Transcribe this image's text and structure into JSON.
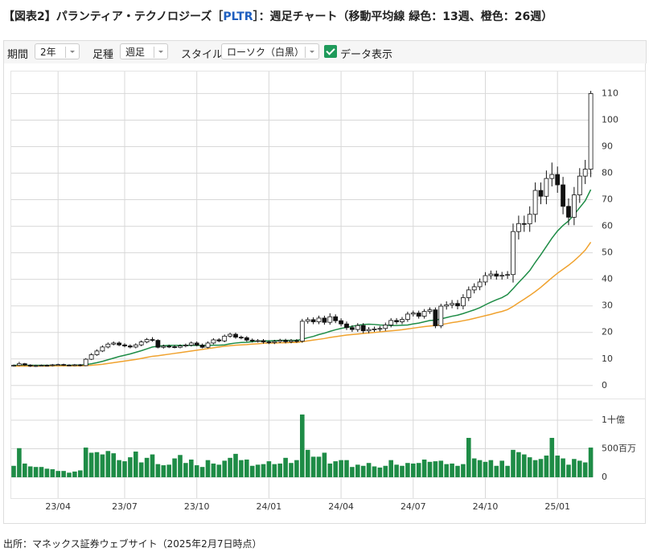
{
  "header": {
    "title_prefix": "【図表2】パランティア・テクノロジーズ［",
    "ticker": "PLTR",
    "title_suffix": "］：週足チャート（移動平均線 緑色：13週、橙色：26週）"
  },
  "controls": {
    "period_label": "期間",
    "period_value": "2年",
    "bar_label": "足種",
    "bar_value": "週足",
    "style_label": "スタイル",
    "style_value": "ローソク（白黒）",
    "data_label": "データ表示"
  },
  "chart_data": {
    "type": "candlestick",
    "categories": [
      null,
      null,
      null,
      null,
      null,
      null,
      null,
      null,
      "23/04",
      null,
      null,
      null,
      null,
      null,
      null,
      null,
      null,
      null,
      null,
      null,
      "23/07",
      null,
      null,
      null,
      null,
      null,
      null,
      null,
      null,
      null,
      null,
      null,
      null,
      "23/10",
      null,
      null,
      null,
      null,
      null,
      null,
      null,
      null,
      null,
      null,
      null,
      null,
      "24/01",
      null,
      null,
      null,
      null,
      null,
      null,
      null,
      null,
      null,
      null,
      null,
      null,
      "24/04",
      null,
      null,
      null,
      null,
      null,
      null,
      null,
      null,
      null,
      null,
      null,
      null,
      "24/07",
      null,
      null,
      null,
      null,
      null,
      null,
      null,
      null,
      null,
      null,
      null,
      null,
      "24/10",
      null,
      null,
      null,
      null,
      null,
      null,
      null,
      null,
      null,
      null,
      null,
      null,
      "25/01",
      null,
      null,
      null,
      null,
      null,
      null
    ],
    "open": [
      7.4,
      7.6,
      8.2,
      7.7,
      7.3,
      7.5,
      7.6,
      7.5,
      7.8,
      7.9,
      7.7,
      7.6,
      7.8,
      7.5,
      9.9,
      11.6,
      13.0,
      14.5,
      15.6,
      16.0,
      15.3,
      14.9,
      14.5,
      15.3,
      16.4,
      17.3,
      17.0,
      14.4,
      14.8,
      14.6,
      14.4,
      14.9,
      15.2,
      16.0,
      15.2,
      14.4,
      16.0,
      17.2,
      16.8,
      18.6,
      19.3,
      18.2,
      18.0,
      17.1,
      16.8,
      16.9,
      16.4,
      16.2,
      16.6,
      17.0,
      16.5,
      16.9,
      16.7,
      24.2,
      24.8,
      24.0,
      25.4,
      23.8,
      25.9,
      24.4,
      23.2,
      21.8,
      21.1,
      22.6,
      20.6,
      21.1,
      21.3,
      21.5,
      22.8,
      24.5,
      24.0,
      24.9,
      26.9,
      27.3,
      26.1,
      27.9,
      28.5,
      22.5,
      29.9,
      30.4,
      30.9,
      30.0,
      33.1,
      36.0,
      37.2,
      39.0,
      41.4,
      42.0,
      41.2,
      41.5,
      41.8,
      58.0,
      61.0,
      60.9,
      64.5,
      73.5,
      71.3,
      78.0,
      79.5,
      75.6,
      67.5,
      63.4,
      71.8,
      78.9,
      81.5
    ],
    "high": [
      7.9,
      8.9,
      8.5,
      8.0,
      7.8,
      7.9,
      7.9,
      8.1,
      8.2,
      8.2,
      8.0,
      8.1,
      8.1,
      10.3,
      12.2,
      13.6,
      15.1,
      16.2,
      16.6,
      16.6,
      15.9,
      15.5,
      15.9,
      17.0,
      17.9,
      18.2,
      17.4,
      15.4,
      15.4,
      15.2,
      15.5,
      15.8,
      16.6,
      16.6,
      15.8,
      16.6,
      17.8,
      17.8,
      19.2,
      19.9,
      19.9,
      18.8,
      18.6,
      17.7,
      17.5,
      17.5,
      17.0,
      17.2,
      17.6,
      17.6,
      17.5,
      17.5,
      25.1,
      25.7,
      25.7,
      26.3,
      26.3,
      27.2,
      26.8,
      25.3,
      24.1,
      22.7,
      23.5,
      23.5,
      22.0,
      22.2,
      22.4,
      23.7,
      25.4,
      25.4,
      25.8,
      27.8,
      28.2,
      28.2,
      28.8,
      29.4,
      29.4,
      30.8,
      31.7,
      32.2,
      32.2,
      34.4,
      37.3,
      38.5,
      40.3,
      42.7,
      43.3,
      43.3,
      42.8,
      43.1,
      61.0,
      64.0,
      64.0,
      67.5,
      76.5,
      76.5,
      81.0,
      84.0,
      82.5,
      78.6,
      70.5,
      74.8,
      81.9,
      85.0,
      111.0
    ],
    "low": [
      7.1,
      7.3,
      7.4,
      7.0,
      7.0,
      7.2,
      7.2,
      7.2,
      7.5,
      7.4,
      7.3,
      7.3,
      7.2,
      7.3,
      9.6,
      11.2,
      12.6,
      14.0,
      15.1,
      14.8,
      14.4,
      14.0,
      14.0,
      14.8,
      15.9,
      16.5,
      14.0,
      13.9,
      14.1,
      14.0,
      14.0,
      14.4,
      14.7,
      14.8,
      14.0,
      14.0,
      15.5,
      16.3,
      16.3,
      18.0,
      17.6,
      17.4,
      16.5,
      16.2,
      16.2,
      15.8,
      15.6,
      15.6,
      16.0,
      15.9,
      15.9,
      16.1,
      16.1,
      23.3,
      23.1,
      23.1,
      22.9,
      22.9,
      23.5,
      22.3,
      20.9,
      20.2,
      20.2,
      19.7,
      19.7,
      20.2,
      20.4,
      20.6,
      21.9,
      23.1,
      23.1,
      24.0,
      26.0,
      25.2,
      25.2,
      27.0,
      21.6,
      21.6,
      28.6,
      29.1,
      28.7,
      28.7,
      31.8,
      34.7,
      35.9,
      37.7,
      40.1,
      39.9,
      39.9,
      40.2,
      38.8,
      55.0,
      57.9,
      57.9,
      61.5,
      68.3,
      68.3,
      75.0,
      72.6,
      64.5,
      60.4,
      60.4,
      68.8,
      75.9,
      78.5
    ],
    "close": [
      7.6,
      8.2,
      7.7,
      7.3,
      7.5,
      7.6,
      7.5,
      7.8,
      7.9,
      7.7,
      7.6,
      7.8,
      7.5,
      9.9,
      11.6,
      13.0,
      14.5,
      15.6,
      16.0,
      15.3,
      14.9,
      14.5,
      15.3,
      16.4,
      17.3,
      17.0,
      14.4,
      14.8,
      14.6,
      14.4,
      14.9,
      15.2,
      16.0,
      15.2,
      14.4,
      16.0,
      17.2,
      16.8,
      18.6,
      19.3,
      18.2,
      18.0,
      17.1,
      16.8,
      16.9,
      16.4,
      16.2,
      16.6,
      17.0,
      16.5,
      16.9,
      16.7,
      24.2,
      24.8,
      24.0,
      25.4,
      23.8,
      25.9,
      24.4,
      23.2,
      21.8,
      21.1,
      22.6,
      20.6,
      21.1,
      21.3,
      21.5,
      22.8,
      24.5,
      24.0,
      24.9,
      26.9,
      27.3,
      26.1,
      27.9,
      28.5,
      22.5,
      29.9,
      30.4,
      30.9,
      30.0,
      33.1,
      36.0,
      37.2,
      39.0,
      41.4,
      42.0,
      41.2,
      41.5,
      41.8,
      58.0,
      61.0,
      60.9,
      64.5,
      73.5,
      71.3,
      78.0,
      79.5,
      75.6,
      67.5,
      63.4,
      71.8,
      78.9,
      81.5,
      110.0
    ],
    "up_color": "#ffffff",
    "down_color": "#111111",
    "ma_series": [
      {
        "color": "#1e8c46",
        "values": [
          7.6,
          7.6,
          7.6,
          7.6,
          7.6,
          7.6,
          7.6,
          7.6,
          7.6,
          7.6,
          7.6,
          7.7,
          7.7,
          7.9,
          8.2,
          8.6,
          9.1,
          9.7,
          10.3,
          10.9,
          11.4,
          11.9,
          12.5,
          13.1,
          13.8,
          14.5,
          14.8,
          15.0,
          15.1,
          15.1,
          15.1,
          15.1,
          15.1,
          15.1,
          15.1,
          15.1,
          15.2,
          15.2,
          15.3,
          15.7,
          16.0,
          16.2,
          16.3,
          16.5,
          16.7,
          16.8,
          16.8,
          16.9,
          17.0,
          17.0,
          17.0,
          17.0,
          17.4,
          18.0,
          18.5,
          19.2,
          19.7,
          20.4,
          21.0,
          21.5,
          21.9,
          22.3,
          22.7,
          23.0,
          23.1,
          23.0,
          22.8,
          22.7,
          22.6,
          22.6,
          22.7,
          22.8,
          23.2,
          23.5,
          24.0,
          24.5,
          24.6,
          25.1,
          25.6,
          26.1,
          26.5,
          27.1,
          27.8,
          28.5,
          29.3,
          30.4,
          31.4,
          32.3,
          33.1,
          34.3,
          36.5,
          38.8,
          41.0,
          43.3,
          46.4,
          49.3,
          52.4,
          55.5,
          58.2,
          60.3,
          62.0,
          64.4,
          67.0,
          69.6,
          73.8
        ]
      },
      {
        "color": "#f0a22e",
        "values": [
          7.3,
          7.3,
          7.3,
          7.3,
          7.3,
          7.3,
          7.3,
          7.4,
          7.4,
          7.4,
          7.4,
          7.4,
          7.4,
          7.5,
          7.6,
          7.8,
          8.0,
          8.3,
          8.6,
          8.9,
          9.2,
          9.5,
          9.8,
          10.2,
          10.6,
          11.0,
          11.2,
          11.5,
          11.8,
          12.1,
          12.4,
          12.7,
          13.0,
          13.3,
          13.6,
          13.9,
          14.2,
          14.5,
          14.8,
          15.0,
          15.2,
          15.3,
          15.4,
          15.6,
          15.7,
          15.9,
          16.0,
          16.0,
          16.1,
          16.1,
          16.2,
          16.2,
          16.5,
          16.8,
          17.1,
          17.4,
          17.7,
          18.1,
          18.4,
          18.7,
          19.0,
          19.2,
          19.4,
          19.6,
          19.8,
          20.0,
          20.2,
          20.4,
          20.6,
          20.8,
          21.0,
          21.3,
          21.6,
          21.9,
          22.2,
          22.4,
          22.6,
          22.9,
          23.3,
          23.7,
          24.0,
          24.4,
          24.8,
          25.3,
          25.8,
          26.3,
          26.8,
          27.4,
          27.9,
          28.6,
          29.8,
          31.2,
          32.5,
          33.9,
          35.4,
          37.0,
          38.8,
          40.6,
          42.3,
          43.8,
          45.3,
          47.0,
          48.9,
          51.0,
          54.0
        ]
      }
    ],
    "ylim": [
      -4,
      118
    ],
    "yticks": [
      0,
      10,
      20,
      30,
      40,
      50,
      60,
      70,
      80,
      90,
      100,
      110
    ],
    "grid": true,
    "volume": {
      "color": "#1e8c46",
      "ylim": [
        -85,
        1366
      ],
      "yticks": [
        0,
        {
          "value": 500,
          "label": "500百万"
        },
        {
          "value": 1000,
          "label": "1十億"
        }
      ],
      "values": [
        200,
        510,
        240,
        190,
        180,
        180,
        150,
        140,
        110,
        110,
        80,
        100,
        120,
        520,
        430,
        440,
        400,
        460,
        420,
        300,
        280,
        350,
        450,
        260,
        340,
        400,
        230,
        210,
        220,
        330,
        390,
        250,
        310,
        210,
        180,
        300,
        240,
        220,
        290,
        340,
        410,
        300,
        310,
        200,
        220,
        230,
        280,
        230,
        240,
        340,
        250,
        300,
        1100,
        480,
        360,
        360,
        430,
        240,
        280,
        300,
        300,
        180,
        220,
        200,
        250,
        190,
        170,
        200,
        300,
        220,
        200,
        250,
        240,
        250,
        310,
        270,
        280,
        290,
        230,
        240,
        200,
        230,
        690,
        330,
        300,
        270,
        300,
        200,
        290,
        200,
        480,
        440,
        400,
        350,
        300,
        320,
        380,
        690,
        380,
        330,
        220,
        320,
        290,
        260,
        520
      ]
    }
  },
  "footer": {
    "source": "出所：マネックス証券ウェブサイト（2025年2月7日時点）"
  }
}
